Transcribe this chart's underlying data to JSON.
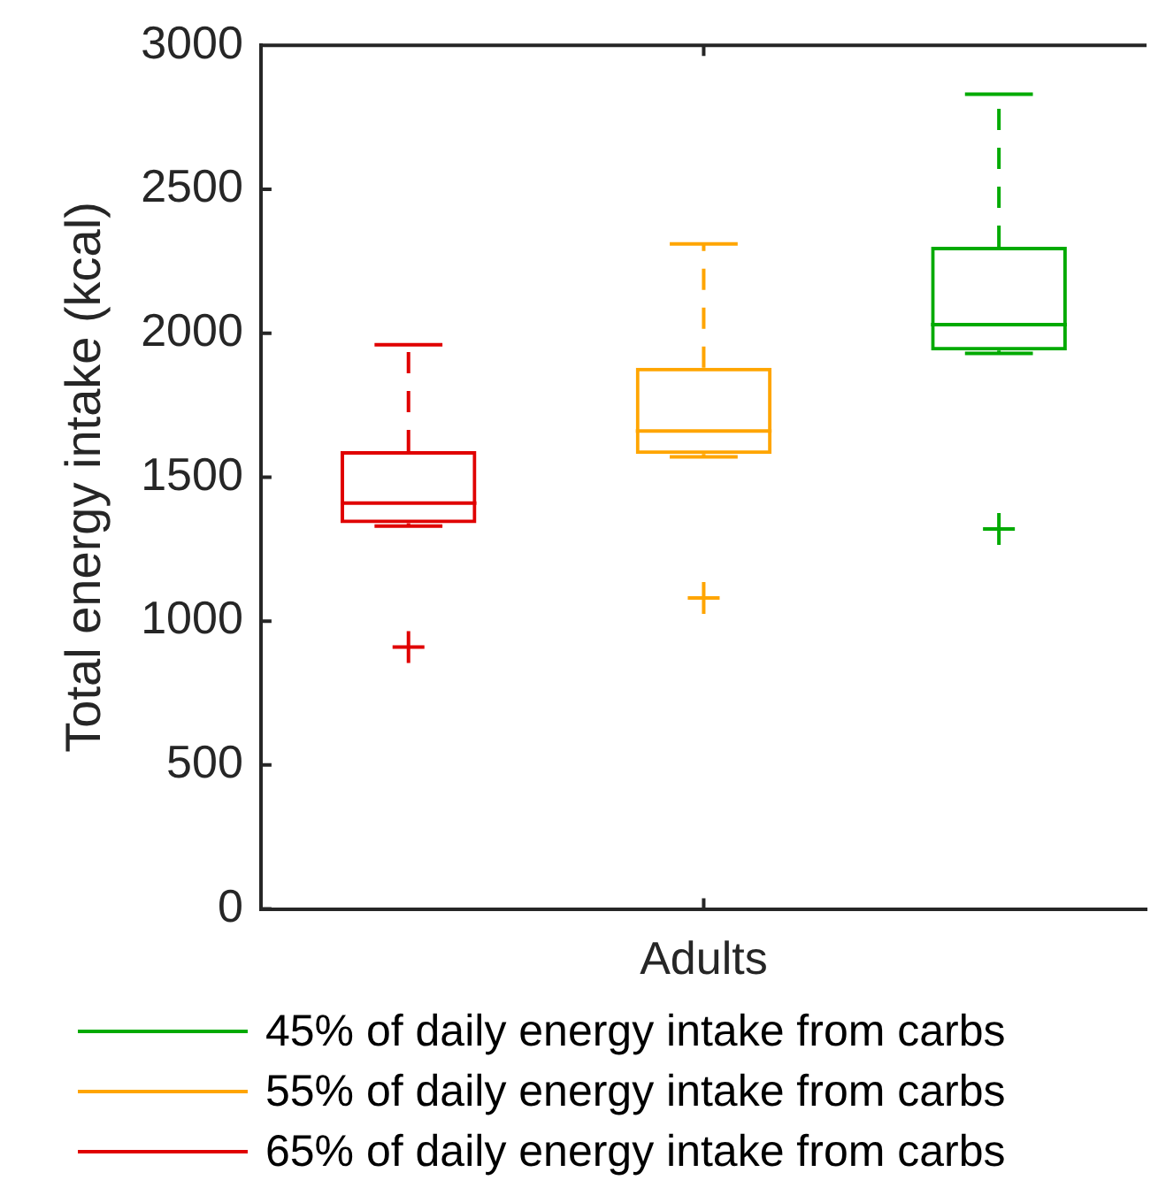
{
  "chart_data": {
    "type": "box",
    "ylabel": "Total energy intake (kcal)",
    "categories": [
      null,
      "Adults",
      null
    ],
    "ylim": [
      0,
      3000
    ],
    "yticks": [
      0,
      500,
      1000,
      1500,
      2000,
      2500,
      3000
    ],
    "grid": false,
    "legend": "bottom",
    "line_style": "dashed",
    "marker": "cross",
    "series": [
      {
        "name": "65% of daily energy intake from carbs",
        "color": "#e00000",
        "boxes": [
          {
            "low": 1330,
            "q1": 1340,
            "median": 1410,
            "q3": 1590,
            "high": 1960,
            "outliers": [
              910
            ]
          },
          null,
          null
        ]
      },
      {
        "name": "55% of daily energy intake from carbs",
        "color": "#ffa500",
        "boxes": [
          null,
          {
            "low": 1570,
            "q1": 1580,
            "median": 1660,
            "q3": 1880,
            "high": 2310,
            "outliers": [
              1080
            ]
          },
          null
        ]
      },
      {
        "name": "45% of daily energy intake from carbs",
        "color": "#00aa00",
        "boxes": [
          null,
          null,
          {
            "low": 1930,
            "q1": 1940,
            "median": 2030,
            "q3": 2300,
            "high": 2830,
            "outliers": [
              1320
            ]
          }
        ]
      }
    ]
  }
}
